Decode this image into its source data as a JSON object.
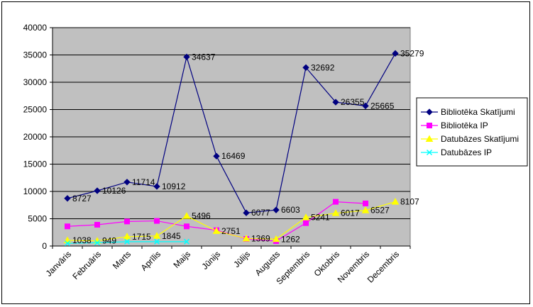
{
  "chart_data": {
    "type": "line",
    "title": "",
    "xlabel": "",
    "ylabel": "",
    "ylim": [
      0,
      40000
    ],
    "yticks": [
      0,
      5000,
      10000,
      15000,
      20000,
      25000,
      30000,
      35000,
      40000
    ],
    "grid": "horizontal",
    "plot_background": "#c0c0c0",
    "legend_position": "right",
    "categories": [
      "Janvāris",
      "Februāris",
      "Marts",
      "Aprīlis",
      "Maijs",
      "Jūnijs",
      "Jūlijs",
      "Augusts",
      "Septembris",
      "Oktobris",
      "Novembris",
      "Decembris"
    ],
    "series": [
      {
        "name": "Bibliotēka Skatījumi",
        "color": "#000080",
        "marker": "diamond",
        "values": [
          8727,
          10126,
          11714,
          10912,
          34637,
          16469,
          6077,
          6603,
          32692,
          26355,
          25665,
          35279
        ],
        "labels": [
          "8727",
          "10126",
          "11714",
          "10912",
          "34637",
          "16469",
          "6077",
          "6603",
          "32692",
          "26355",
          "25665",
          "35279"
        ]
      },
      {
        "name": "Bibliotēka IP",
        "color": "#ff00ff",
        "marker": "square",
        "values": [
          3600,
          3900,
          4500,
          4600,
          3600,
          2900,
          1300,
          900,
          4200,
          8100,
          7800,
          null
        ],
        "labels": []
      },
      {
        "name": "Datubāzes Skatījumi",
        "color": "#ffff00",
        "marker": "triangle",
        "values": [
          1038,
          949,
          1715,
          1845,
          5496,
          2751,
          1369,
          1262,
          5241,
          6017,
          6527,
          8107
        ],
        "labels": [
          "1038",
          "949",
          "1715",
          "1845",
          "5496",
          "2751",
          "1369",
          "1262",
          "5241",
          "6017",
          "6527",
          "8107"
        ]
      },
      {
        "name": "Datubāzes IP",
        "color": "#00ffff",
        "marker": "x",
        "values": [
          500,
          600,
          800,
          800,
          800,
          null,
          null,
          null,
          null,
          null,
          null,
          null
        ],
        "labels": []
      }
    ]
  }
}
